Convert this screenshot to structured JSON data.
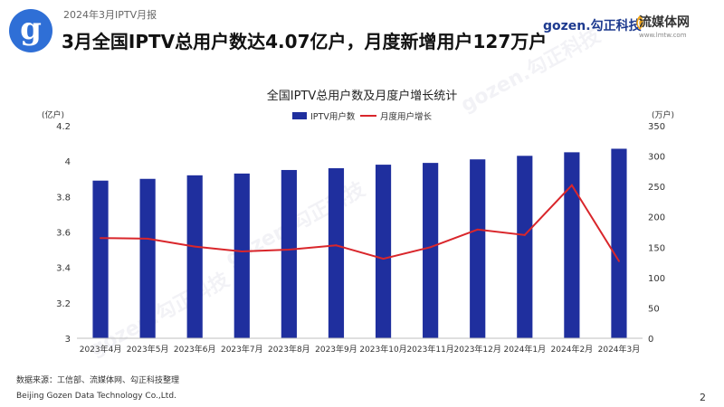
{
  "header": {
    "report_label": "2024年3月IPTV月报",
    "headline": "3月全国IPTV总用户数达4.07亿户，月度新增用户127万户",
    "brand_gozen": "gozen.勾正科技",
    "brand_lmtw": "流媒体网",
    "brand_lmtw_sub": "www.lmtw.com"
  },
  "footer": {
    "source": "数据来源：工信部、流媒体网、勾正科技整理",
    "company": "Beijing Gozen Data Technology Co.,Ltd.",
    "page_number": "2"
  },
  "colors": {
    "bar": "#1f2f9e",
    "line": "#d9262b",
    "axis_text": "#333333"
  },
  "chart_data": {
    "type": "bar",
    "title": "全国IPTV总用户数及月度户增长统计",
    "y_left_unit": "(亿户)",
    "y_right_unit": "(万户)",
    "y_left_lim": [
      3,
      4.2
    ],
    "y_left_ticks": [
      "3",
      "3.2",
      "3.4",
      "3.6",
      "3.8",
      "4",
      "4.2"
    ],
    "y_right_lim": [
      0,
      350
    ],
    "y_right_ticks": [
      "0",
      "50",
      "100",
      "150",
      "200",
      "250",
      "300",
      "350"
    ],
    "categories": [
      "2023年4月",
      "2023年5月",
      "2023年6月",
      "2023年7月",
      "2023年8月",
      "2023年9月",
      "2023年10月",
      "2023年11月",
      "2023年12月",
      "2024年1月",
      "2024年2月",
      "2024年3月"
    ],
    "series": [
      {
        "name": "IPTV用户数",
        "type": "bar",
        "axis": "left",
        "values": [
          3.89,
          3.9,
          3.92,
          3.93,
          3.95,
          3.96,
          3.98,
          3.99,
          4.01,
          4.03,
          4.05,
          4.07
        ]
      },
      {
        "name": "月度用户增长",
        "type": "line",
        "axis": "right",
        "values": [
          165,
          164,
          151,
          143,
          146,
          153,
          131,
          150,
          179,
          170,
          252,
          127
        ]
      }
    ],
    "legend_position": "top-center",
    "grid": false
  }
}
